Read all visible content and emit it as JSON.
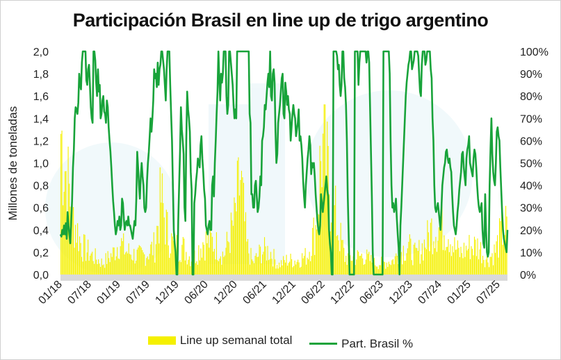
{
  "chart_data": {
    "type": "bar+line",
    "title": "Participación Brasil en line up de trigo argentino",
    "ylabel": "Millones de toneladas",
    "ylim": [
      0,
      2.0
    ],
    "y2lim": [
      0,
      100
    ],
    "yticks": [
      "0,0",
      "0,2",
      "0,4",
      "0,6",
      "0,8",
      "1,0",
      "1,2",
      "1,4",
      "1,6",
      "1,8",
      "2,0"
    ],
    "y2ticks": [
      "0%",
      "10%",
      "20%",
      "30%",
      "40%",
      "50%",
      "60%",
      "70%",
      "80%",
      "90%",
      "100%"
    ],
    "xticks": [
      "01/18",
      "07/18",
      "01/19",
      "07/19",
      "12/19",
      "06/20",
      "12/20",
      "06/21",
      "12/21",
      "06/22",
      "12/22",
      "06/23",
      "12/23",
      "07/24",
      "01/25",
      "07/25"
    ],
    "legend": [
      {
        "name": "Line up semanal total",
        "color": "#f5f000"
      },
      {
        "name": "Part. Brasil %",
        "color": "#18a33a"
      }
    ],
    "legend_position": "bottom",
    "bar_color": "#f5f000",
    "line_color": "#18a33a",
    "grid": false,
    "bar_series": {
      "name": "Line up semanal total",
      "anchors": [
        [
          0,
          1.5
        ],
        [
          6,
          1.0
        ],
        [
          12,
          0.6
        ],
        [
          20,
          0.3
        ],
        [
          30,
          0.2
        ],
        [
          40,
          0.12
        ],
        [
          50,
          0.22
        ],
        [
          56,
          0.35
        ],
        [
          62,
          0.25
        ],
        [
          72,
          0.2
        ],
        [
          80,
          0.2
        ],
        [
          90,
          0.3
        ],
        [
          96,
          0.8
        ],
        [
          102,
          0.45
        ],
        [
          108,
          0.3
        ],
        [
          116,
          0.3
        ],
        [
          126,
          0.15
        ],
        [
          136,
          0.35
        ],
        [
          144,
          0.35
        ],
        [
          150,
          0.3
        ],
        [
          156,
          0.2
        ],
        [
          166,
          0.55
        ],
        [
          172,
          1.0
        ],
        [
          178,
          0.3
        ],
        [
          184,
          0.12
        ],
        [
          192,
          0.25
        ],
        [
          200,
          0.25
        ],
        [
          208,
          0.1
        ],
        [
          216,
          0.15
        ],
        [
          226,
          0.15
        ],
        [
          236,
          0.2
        ],
        [
          244,
          0.5
        ],
        [
          250,
          1.35
        ],
        [
          256,
          1.0
        ],
        [
          264,
          0.55
        ],
        [
          272,
          0.18
        ],
        [
          282,
          0.18
        ],
        [
          290,
          0.2
        ],
        [
          300,
          0.12
        ],
        [
          308,
          0.12
        ],
        [
          318,
          0.15
        ],
        [
          326,
          0.25
        ],
        [
          332,
          0.3
        ],
        [
          340,
          0.2
        ],
        [
          350,
          0.35
        ],
        [
          356,
          0.5
        ],
        [
          362,
          0.5
        ],
        [
          370,
          0.5
        ],
        [
          376,
          0.3
        ],
        [
          382,
          0.22
        ],
        [
          392,
          0.3
        ],
        [
          400,
          0.3
        ],
        [
          408,
          0.15
        ],
        [
          416,
          0.25
        ],
        [
          422,
          0.45
        ],
        [
          427,
          0.5
        ]
      ]
    },
    "line_series": {
      "name": "Part. Brasil %",
      "values": [
        18,
        17,
        20,
        18,
        22,
        18,
        23,
        16,
        28,
        22,
        18,
        14,
        24,
        33,
        48,
        56,
        70,
        75,
        74,
        72,
        77,
        90,
        85,
        83,
        95,
        100,
        100,
        100,
        100,
        87,
        85,
        92,
        94,
        85,
        75,
        70,
        68,
        100,
        100,
        96,
        86,
        80,
        92,
        82,
        85,
        70,
        72,
        78,
        80,
        73,
        72,
        68,
        78,
        75,
        66,
        60,
        55,
        48,
        40,
        33,
        28,
        22,
        18,
        20,
        24,
        22,
        26,
        20,
        22,
        34,
        32,
        25,
        20,
        23,
        24,
        22,
        26,
        22,
        22,
        20,
        18,
        16,
        20,
        24,
        22,
        34,
        55,
        48,
        40,
        34,
        44,
        50,
        44,
        40,
        30,
        28,
        30,
        42,
        50,
        55,
        62,
        70,
        64,
        70,
        78,
        92,
        88,
        90,
        84,
        95,
        85,
        92,
        94,
        100,
        100,
        96,
        92,
        85,
        78,
        92,
        100,
        100,
        100,
        85,
        72,
        60,
        40,
        20,
        14,
        10,
        0,
        0,
        24,
        40,
        55,
        75,
        65,
        60,
        54,
        30,
        24,
        60,
        82,
        74,
        70,
        64,
        46,
        38,
        0,
        0,
        32,
        36,
        42,
        46,
        52,
        50,
        48,
        58,
        62,
        52,
        46,
        38,
        34,
        22,
        20,
        18,
        22,
        24,
        20,
        20,
        40,
        44,
        35,
        50,
        60,
        72,
        82,
        100,
        88,
        78,
        90,
        86,
        90,
        100,
        100,
        100,
        80,
        72,
        76,
        100,
        100,
        95,
        90,
        85,
        76,
        70,
        74,
        70,
        100,
        100,
        100,
        100,
        100,
        100,
        100,
        100,
        100,
        100,
        100,
        100,
        100,
        100,
        72,
        68,
        36,
        36,
        30,
        30,
        40,
        42,
        35,
        28,
        30,
        35,
        44,
        40,
        60,
        62,
        66,
        76,
        74,
        80,
        86,
        90,
        84,
        100,
        80,
        78,
        90,
        92,
        86,
        64,
        50,
        54,
        68,
        72,
        76,
        82,
        88,
        90,
        72,
        70,
        86,
        82,
        76,
        80,
        74,
        72,
        60,
        66,
        72,
        76,
        72,
        70,
        62,
        65,
        68,
        74,
        60,
        62,
        58,
        52,
        42,
        35,
        30,
        40,
        46,
        52,
        56,
        62,
        58,
        45,
        50,
        48,
        50,
        44,
        36,
        30,
        24,
        20,
        18,
        22,
        36,
        32,
        28,
        32,
        36,
        40,
        44,
        38,
        35,
        20,
        14,
        10,
        0,
        0,
        100,
        100,
        100,
        100,
        98,
        92,
        94,
        85,
        80,
        85,
        100,
        100,
        88,
        84,
        76,
        60,
        35,
        18,
        0,
        0,
        0,
        0,
        0,
        0,
        100,
        100,
        100,
        100,
        85,
        95,
        100,
        100,
        100,
        100,
        100,
        100,
        100,
        95,
        100,
        100,
        95,
        75,
        55,
        35,
        10,
        0,
        0,
        0,
        0,
        0,
        0,
        0,
        0,
        0,
        0,
        0,
        100,
        100,
        100,
        100,
        100,
        100,
        100,
        90,
        60,
        40,
        30,
        32,
        28,
        30,
        34,
        25,
        18,
        12,
        0,
        22,
        30,
        40,
        50,
        60,
        70,
        80,
        86,
        90,
        94,
        96,
        100,
        100,
        92,
        94,
        96,
        100,
        100,
        100,
        100,
        98,
        90,
        82,
        80,
        94,
        100,
        100,
        100,
        94,
        96,
        100,
        100,
        100,
        100,
        92,
        88,
        70,
        60,
        40,
        30,
        28,
        30,
        32,
        28,
        24,
        20,
        30,
        40,
        44,
        48,
        50,
        55,
        56,
        52,
        50,
        52,
        48,
        46,
        36,
        28,
        22,
        20,
        18,
        22,
        28,
        32,
        38,
        42,
        46,
        54,
        55,
        48,
        44,
        40,
        52,
        56,
        58,
        62,
        50,
        48,
        46,
        44,
        52,
        56,
        54,
        48,
        40,
        34,
        30,
        28,
        30,
        32,
        20,
        14,
        12,
        36,
        20,
        10,
        8,
        10,
        40,
        56,
        70,
        54,
        46,
        42,
        40,
        50,
        64,
        66,
        62,
        60,
        48,
        38,
        28,
        20,
        16,
        14,
        12,
        10,
        20
      ]
    }
  }
}
